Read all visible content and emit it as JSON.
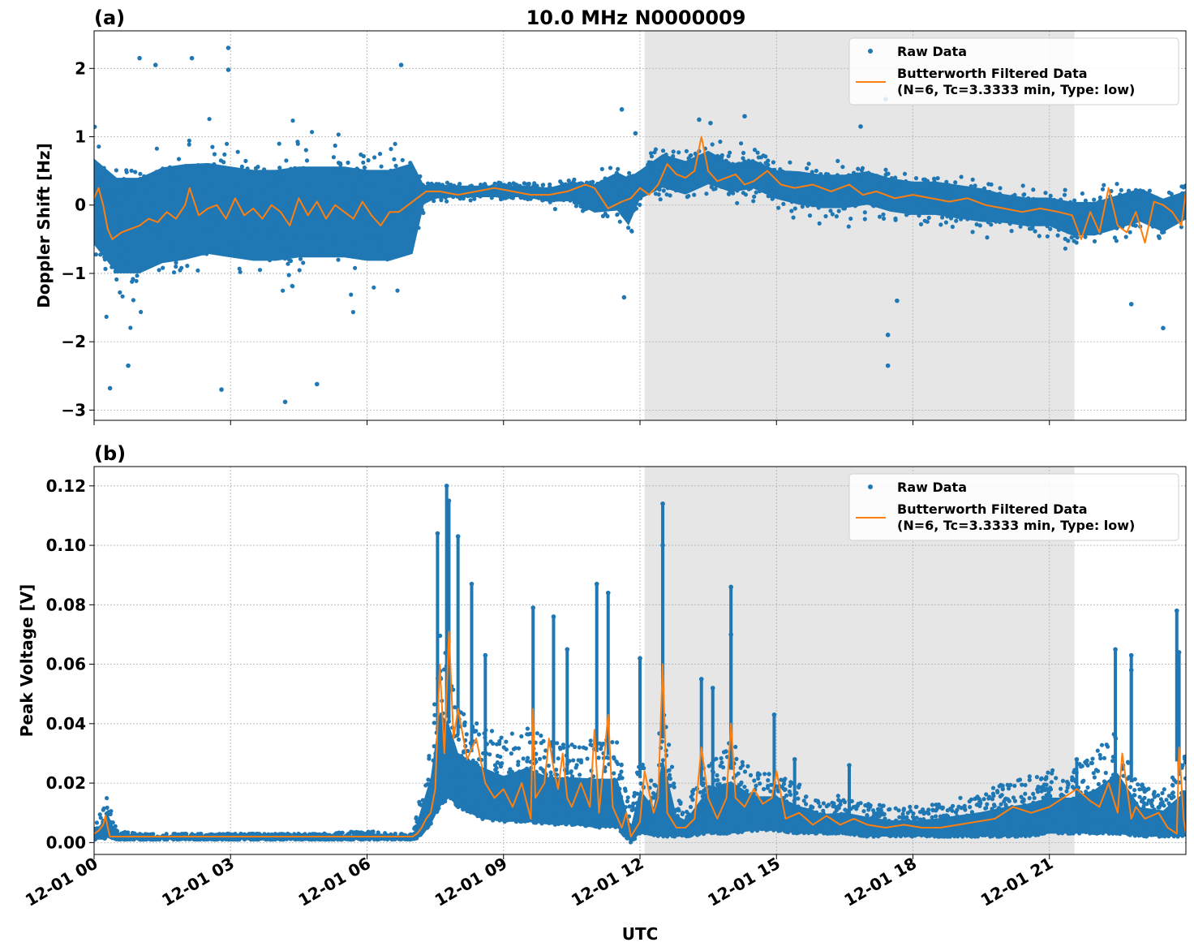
{
  "figure": {
    "title": "10.0 MHz N0000009",
    "xlabel": "UTC",
    "xticks": [
      "12-01 00",
      "12-01 03",
      "12-01 06",
      "12-01 09",
      "12-01 12",
      "12-01 15",
      "12-01 18",
      "12-01 21"
    ],
    "shaded_interval_utc_hours": [
      12.1,
      21.55
    ],
    "colors": {
      "raw": "#1f77b4",
      "filtered": "#ff7f0e",
      "shade": "#e6e6e6",
      "grid": "#b0b0b0"
    }
  },
  "legend": {
    "placement": "upper-right",
    "raw_label": "Raw Data",
    "filtered_label_1": "Butterworth Filtered Data",
    "filtered_label_2": "(N=6, Tc=3.3333 min, Type: low)"
  },
  "chart_data": [
    {
      "type": "scatter",
      "panel_label": "(a)",
      "ylabel": "Doppler Shift [Hz]",
      "xlim_utc_hours": [
        0,
        24
      ],
      "ylim": [
        -3.15,
        2.55
      ],
      "yticks": [
        2,
        1,
        0,
        -1,
        -2,
        -3
      ],
      "ytick_labels": [
        "2",
        "1",
        "0",
        "−1",
        "−2",
        "−3"
      ],
      "grid": true,
      "series": [
        {
          "name": "Raw Data",
          "style": "points",
          "band_x_utc_hours": [
            0,
            0.5,
            1,
            1.5,
            2,
            2.5,
            3,
            3.5,
            4,
            4.5,
            5,
            5.5,
            6,
            6.5,
            7,
            7.25,
            7.5,
            8,
            8.5,
            9,
            9.5,
            10,
            10.5,
            11,
            11.5,
            11.75,
            12,
            12.5,
            13,
            13.5,
            14,
            14.5,
            15,
            15.5,
            16,
            16.5,
            17,
            17.5,
            18,
            18.5,
            19,
            19.5,
            20,
            20.5,
            21,
            21.5,
            22,
            22.5,
            23,
            23.5,
            24
          ],
          "band_center_hz": [
            0.05,
            -0.3,
            -0.3,
            -0.15,
            -0.1,
            -0.05,
            -0.1,
            -0.15,
            -0.15,
            -0.1,
            -0.1,
            -0.1,
            -0.15,
            -0.15,
            -0.05,
            0.15,
            0.2,
            0.2,
            0.2,
            0.2,
            0.2,
            0.15,
            0.2,
            0.1,
            0.2,
            0.05,
            0.3,
            0.5,
            0.4,
            0.55,
            0.4,
            0.45,
            0.3,
            0.25,
            0.2,
            0.2,
            0.25,
            0.15,
            0.1,
            0.1,
            0.05,
            0.0,
            -0.05,
            -0.1,
            -0.1,
            -0.2,
            -0.2,
            -0.1,
            0.0,
            -0.15,
            0.0
          ],
          "band_half_width_hz": [
            0.9,
            1.0,
            1.0,
            1.0,
            1.0,
            0.95,
            0.95,
            0.95,
            0.95,
            0.95,
            0.95,
            0.95,
            0.95,
            0.95,
            0.95,
            0.2,
            0.15,
            0.12,
            0.12,
            0.12,
            0.12,
            0.15,
            0.2,
            0.3,
            0.4,
            0.5,
            0.3,
            0.35,
            0.35,
            0.35,
            0.3,
            0.3,
            0.3,
            0.35,
            0.35,
            0.35,
            0.35,
            0.35,
            0.35,
            0.35,
            0.35,
            0.35,
            0.3,
            0.3,
            0.3,
            0.35,
            0.35,
            0.35,
            0.35,
            0.35,
            0.3
          ],
          "outliers": [
            {
              "x": 1.0,
              "y": 2.15
            },
            {
              "x": 1.35,
              "y": 2.05
            },
            {
              "x": 2.15,
              "y": 2.15
            },
            {
              "x": 2.95,
              "y": 2.3
            },
            {
              "x": 2.95,
              "y": 1.98
            },
            {
              "x": 0.35,
              "y": -2.68
            },
            {
              "x": 0.75,
              "y": -2.35
            },
            {
              "x": 2.8,
              "y": -2.7
            },
            {
              "x": 4.2,
              "y": -2.88
            },
            {
              "x": 4.9,
              "y": -2.62
            },
            {
              "x": 6.75,
              "y": 2.05
            },
            {
              "x": 11.6,
              "y": 1.4
            },
            {
              "x": 11.65,
              "y": -1.35
            },
            {
              "x": 13.3,
              "y": 1.25
            },
            {
              "x": 17.4,
              "y": 1.55
            },
            {
              "x": 17.45,
              "y": -1.9
            },
            {
              "x": 17.45,
              "y": -2.35
            },
            {
              "x": 17.65,
              "y": -1.4
            },
            {
              "x": 22.8,
              "y": -1.45
            },
            {
              "x": 23.5,
              "y": -1.8
            },
            {
              "x": 11.9,
              "y": 1.05
            },
            {
              "x": 13.55,
              "y": 1.2
            },
            {
              "x": 14.3,
              "y": 1.3
            },
            {
              "x": 16.85,
              "y": 1.15
            }
          ]
        },
        {
          "name": "Butterworth Filtered Data",
          "style": "line",
          "x_utc_hours": [
            0,
            0.1,
            0.2,
            0.3,
            0.4,
            0.6,
            0.8,
            1.0,
            1.2,
            1.4,
            1.6,
            1.8,
            2.0,
            2.1,
            2.3,
            2.5,
            2.7,
            2.9,
            3.1,
            3.3,
            3.5,
            3.7,
            3.9,
            4.1,
            4.3,
            4.5,
            4.7,
            4.9,
            5.1,
            5.3,
            5.5,
            5.7,
            5.9,
            6.1,
            6.3,
            6.5,
            6.7,
            6.9,
            7.1,
            7.3,
            7.6,
            8.0,
            8.4,
            8.8,
            9.2,
            9.6,
            10.0,
            10.4,
            10.8,
            11.0,
            11.3,
            11.6,
            11.8,
            12.0,
            12.2,
            12.4,
            12.6,
            12.8,
            13.0,
            13.2,
            13.35,
            13.5,
            13.7,
            13.9,
            14.1,
            14.3,
            14.5,
            14.8,
            15.1,
            15.4,
            15.8,
            16.2,
            16.6,
            16.9,
            17.2,
            17.6,
            18.0,
            18.4,
            18.8,
            19.2,
            19.6,
            20.0,
            20.4,
            20.8,
            21.2,
            21.5,
            21.7,
            21.9,
            22.1,
            22.3,
            22.5,
            22.7,
            22.9,
            23.1,
            23.3,
            23.5,
            23.7,
            23.9,
            24.0
          ],
          "y_hz": [
            0.1,
            0.25,
            0.0,
            -0.35,
            -0.5,
            -0.4,
            -0.35,
            -0.3,
            -0.2,
            -0.25,
            -0.1,
            -0.2,
            0.0,
            0.25,
            -0.15,
            -0.05,
            0.0,
            -0.2,
            0.1,
            -0.15,
            -0.05,
            -0.2,
            0.0,
            -0.1,
            -0.3,
            0.1,
            -0.15,
            0.05,
            -0.2,
            0.0,
            -0.1,
            -0.2,
            0.05,
            -0.15,
            -0.3,
            -0.1,
            -0.1,
            0.0,
            0.1,
            0.2,
            0.2,
            0.15,
            0.2,
            0.25,
            0.2,
            0.15,
            0.15,
            0.2,
            0.3,
            0.25,
            -0.05,
            0.05,
            0.1,
            0.25,
            0.15,
            0.3,
            0.6,
            0.45,
            0.4,
            0.5,
            1.0,
            0.5,
            0.35,
            0.4,
            0.45,
            0.3,
            0.35,
            0.5,
            0.3,
            0.25,
            0.3,
            0.2,
            0.3,
            0.15,
            0.2,
            0.1,
            0.15,
            0.1,
            0.05,
            0.1,
            0.0,
            -0.05,
            -0.1,
            -0.05,
            -0.1,
            -0.15,
            -0.5,
            -0.1,
            -0.4,
            0.25,
            -0.3,
            -0.4,
            -0.1,
            -0.55,
            0.05,
            0.0,
            -0.1,
            -0.3,
            0.2
          ]
        }
      ]
    },
    {
      "type": "scatter",
      "panel_label": "(b)",
      "ylabel": "Peak Voltage [V]",
      "xlim_utc_hours": [
        0,
        24
      ],
      "ylim": [
        -0.004,
        0.1265
      ],
      "yticks": [
        0.12,
        0.1,
        0.08,
        0.06,
        0.04,
        0.02,
        0.0
      ],
      "ytick_labels": [
        "0.12",
        "0.10",
        "0.08",
        "0.06",
        "0.04",
        "0.02",
        "0.00"
      ],
      "grid": true,
      "series": [
        {
          "name": "Raw Data",
          "style": "points",
          "band_x_utc_hours": [
            0,
            0.2,
            0.3,
            0.5,
            1,
            2,
            3,
            4,
            5,
            6,
            6.5,
            7,
            7.2,
            7.4,
            7.6,
            7.8,
            8,
            8.5,
            9,
            9.5,
            10,
            10.5,
            11,
            11.5,
            11.8,
            12,
            12.3,
            12.5,
            12.8,
            13,
            13.5,
            14,
            14.5,
            15,
            15.5,
            16,
            16.5,
            17,
            17.5,
            18,
            18.5,
            19,
            19.5,
            20,
            20.5,
            21,
            21.5,
            22,
            22.5,
            23,
            23.5,
            24
          ],
          "band_low_v": [
            0.001,
            0.001,
            0.002,
            0.001,
            0.001,
            0.001,
            0.001,
            0.001,
            0.001,
            0.001,
            0.001,
            0.001,
            0.002,
            0.006,
            0.012,
            0.015,
            0.012,
            0.008,
            0.007,
            0.007,
            0.006,
            0.006,
            0.005,
            0.005,
            0.0,
            0.003,
            0.002,
            0.002,
            0.002,
            0.002,
            0.003,
            0.003,
            0.004,
            0.004,
            0.003,
            0.003,
            0.003,
            0.002,
            0.002,
            0.002,
            0.002,
            0.002,
            0.002,
            0.002,
            0.002,
            0.003,
            0.003,
            0.003,
            0.003,
            0.002,
            0.002,
            0.002
          ],
          "band_high_v": [
            0.006,
            0.012,
            0.016,
            0.004,
            0.003,
            0.003,
            0.003,
            0.003,
            0.003,
            0.004,
            0.003,
            0.003,
            0.02,
            0.035,
            0.07,
            0.06,
            0.045,
            0.04,
            0.035,
            0.04,
            0.035,
            0.035,
            0.035,
            0.035,
            0.01,
            0.03,
            0.02,
            0.05,
            0.015,
            0.012,
            0.03,
            0.035,
            0.025,
            0.025,
            0.02,
            0.015,
            0.016,
            0.014,
            0.012,
            0.012,
            0.013,
            0.015,
            0.017,
            0.02,
            0.022,
            0.025,
            0.025,
            0.03,
            0.04,
            0.02,
            0.018,
            0.03
          ],
          "spikes": [
            {
              "x": 7.55,
              "y": 0.104
            },
            {
              "x": 7.75,
              "y": 0.12
            },
            {
              "x": 7.8,
              "y": 0.115
            },
            {
              "x": 8.0,
              "y": 0.103
            },
            {
              "x": 8.3,
              "y": 0.087
            },
            {
              "x": 8.6,
              "y": 0.063
            },
            {
              "x": 9.65,
              "y": 0.079
            },
            {
              "x": 10.1,
              "y": 0.076
            },
            {
              "x": 10.4,
              "y": 0.065
            },
            {
              "x": 11.05,
              "y": 0.087
            },
            {
              "x": 11.3,
              "y": 0.084
            },
            {
              "x": 12.0,
              "y": 0.062
            },
            {
              "x": 12.5,
              "y": 0.114
            },
            {
              "x": 12.5,
              "y": 0.1
            },
            {
              "x": 13.35,
              "y": 0.055
            },
            {
              "x": 13.6,
              "y": 0.052
            },
            {
              "x": 14.0,
              "y": 0.086
            },
            {
              "x": 14.0,
              "y": 0.07
            },
            {
              "x": 14.95,
              "y": 0.043
            },
            {
              "x": 15.4,
              "y": 0.028
            },
            {
              "x": 16.6,
              "y": 0.026
            },
            {
              "x": 21.6,
              "y": 0.028
            },
            {
              "x": 22.45,
              "y": 0.065
            },
            {
              "x": 22.8,
              "y": 0.063
            },
            {
              "x": 22.8,
              "y": 0.058
            },
            {
              "x": 23.8,
              "y": 0.078
            },
            {
              "x": 23.85,
              "y": 0.064
            }
          ]
        },
        {
          "name": "Butterworth Filtered Data",
          "style": "line",
          "x_utc_hours": [
            0,
            0.1,
            0.2,
            0.25,
            0.3,
            0.35,
            0.5,
            1,
            2,
            3,
            4,
            5,
            6,
            6.5,
            7,
            7.1,
            7.2,
            7.3,
            7.4,
            7.5,
            7.6,
            7.7,
            7.8,
            7.9,
            8.0,
            8.2,
            8.4,
            8.6,
            8.8,
            9.0,
            9.2,
            9.4,
            9.6,
            9.65,
            9.7,
            9.9,
            10.0,
            10.1,
            10.2,
            10.3,
            10.4,
            10.5,
            10.7,
            10.9,
            11.0,
            11.1,
            11.3,
            11.4,
            11.6,
            11.7,
            11.8,
            12.0,
            12.1,
            12.3,
            12.4,
            12.5,
            12.6,
            12.8,
            13.0,
            13.2,
            13.35,
            13.5,
            13.7,
            13.9,
            14.0,
            14.1,
            14.3,
            14.5,
            14.7,
            14.9,
            15.0,
            15.2,
            15.5,
            15.8,
            16.1,
            16.4,
            16.7,
            17.0,
            17.4,
            17.8,
            18.2,
            18.6,
            19.0,
            19.4,
            19.8,
            20.2,
            20.6,
            21.0,
            21.3,
            21.6,
            21.9,
            22.1,
            22.3,
            22.5,
            22.6,
            22.8,
            22.9,
            23.1,
            23.4,
            23.6,
            23.8,
            23.85,
            23.95,
            24.0
          ],
          "y_v": [
            0.003,
            0.004,
            0.006,
            0.009,
            0.005,
            0.002,
            0.002,
            0.002,
            0.002,
            0.002,
            0.002,
            0.002,
            0.002,
            0.002,
            0.002,
            0.003,
            0.005,
            0.008,
            0.01,
            0.018,
            0.06,
            0.03,
            0.071,
            0.035,
            0.045,
            0.028,
            0.035,
            0.02,
            0.015,
            0.018,
            0.012,
            0.02,
            0.008,
            0.045,
            0.015,
            0.02,
            0.035,
            0.025,
            0.018,
            0.03,
            0.015,
            0.012,
            0.02,
            0.012,
            0.038,
            0.01,
            0.043,
            0.012,
            0.005,
            0.01,
            0.002,
            0.007,
            0.024,
            0.01,
            0.015,
            0.06,
            0.01,
            0.005,
            0.005,
            0.008,
            0.032,
            0.015,
            0.008,
            0.015,
            0.04,
            0.015,
            0.012,
            0.018,
            0.013,
            0.015,
            0.024,
            0.008,
            0.01,
            0.006,
            0.009,
            0.006,
            0.008,
            0.006,
            0.005,
            0.006,
            0.005,
            0.005,
            0.006,
            0.007,
            0.008,
            0.012,
            0.01,
            0.012,
            0.015,
            0.018,
            0.014,
            0.012,
            0.02,
            0.01,
            0.03,
            0.008,
            0.012,
            0.008,
            0.01,
            0.005,
            0.003,
            0.032,
            0.008,
            0.003
          ]
        }
      ]
    }
  ]
}
